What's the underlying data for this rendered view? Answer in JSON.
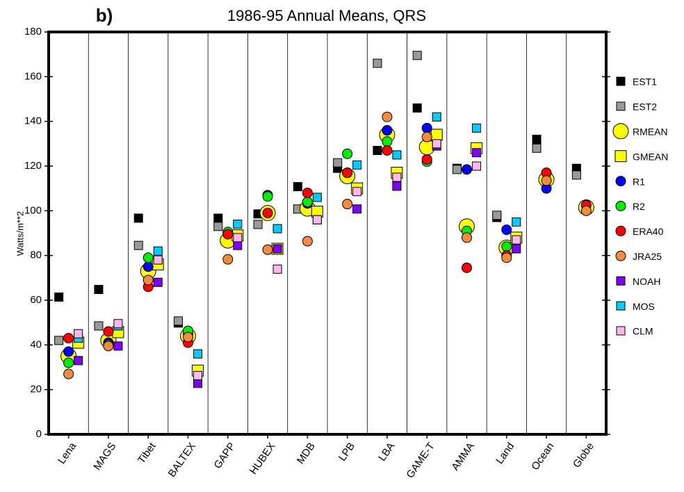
{
  "chart_data": {
    "type": "scatter",
    "panel": "b)",
    "title": "1986-95 Annual Means, QRS",
    "y_label": "Watts/m**2",
    "categories": [
      "Lena",
      "MAGS",
      "Tibet",
      "BALTEX",
      "GAPP",
      "HUBEX",
      "MDB",
      "LPB",
      "LBA",
      "GAME-T",
      "AMMA",
      "Land",
      "Ocean",
      "Globe"
    ],
    "ylim": [
      0,
      180
    ],
    "yticks": [
      0,
      20,
      40,
      60,
      80,
      100,
      120,
      140,
      160,
      180
    ],
    "series": [
      {
        "name": "EST1",
        "color": "#000000",
        "marker": "square",
        "values": [
          61.4,
          64.8,
          96.7,
          49.8,
          96.7,
          98.6,
          110.8,
          119,
          127,
          146,
          119,
          97,
          132,
          119
        ]
      },
      {
        "name": "EST2",
        "color": "#999999",
        "marker": "square",
        "values": [
          42,
          48.5,
          84.5,
          50.7,
          93,
          93.9,
          100.8,
          121.5,
          166,
          169.5,
          118.5,
          98,
          128,
          116
        ]
      },
      {
        "name": "RMEAN",
        "color": "#ffff00",
        "marker": "circle",
        "values": [
          35,
          42,
          73,
          44,
          86.7,
          99,
          101,
          115.5,
          134,
          128.5,
          93,
          83.5,
          114,
          101.5
        ]
      },
      {
        "name": "GMEAN",
        "color": "#ffff00",
        "marker": "square",
        "values": [
          41,
          45.7,
          76,
          28.5,
          89,
          83,
          99.6,
          110,
          117,
          134,
          128,
          88,
          null,
          null
        ]
      },
      {
        "name": "R1",
        "color": "#0000ff",
        "marker": "circle",
        "values": [
          37,
          41,
          75,
          45,
          90,
          107,
          103.3,
          117,
          136,
          137,
          118.5,
          91.5,
          110,
          null
        ]
      },
      {
        "name": "R2",
        "color": "#00ee00",
        "marker": "circle",
        "values": [
          32,
          40,
          79,
          46.3,
          90.5,
          106.4,
          104,
          125.5,
          131,
          122,
          91,
          84,
          null,
          null
        ]
      },
      {
        "name": "ERA40",
        "color": "#ff0000",
        "marker": "circle",
        "values": [
          43,
          46,
          66,
          41,
          89.5,
          99,
          108,
          117,
          127,
          123,
          74.5,
          80,
          117,
          102.5
        ]
      },
      {
        "name": "JRA25",
        "color": "#f08c3c",
        "marker": "circle",
        "values": [
          27,
          39.5,
          69,
          43.5,
          78.3,
          82.6,
          86.4,
          103,
          142,
          133,
          88,
          79,
          113.5,
          100
        ]
      },
      {
        "name": "NOAH",
        "color": "#7f00ff",
        "marker": "square",
        "values": [
          33,
          39.5,
          68,
          22.8,
          84.5,
          83,
          96,
          100.8,
          111,
          129,
          126,
          83,
          null,
          null
        ]
      },
      {
        "name": "MOS",
        "color": "#00ccff",
        "marker": "square",
        "values": [
          43,
          48.5,
          82,
          36,
          94,
          92,
          106,
          120.5,
          125,
          142,
          137,
          95,
          null,
          null
        ]
      },
      {
        "name": "CLM",
        "color": "#ffb6f0",
        "marker": "square",
        "values": [
          45,
          49.5,
          78,
          26.3,
          88,
          73.9,
          96,
          108.6,
          115,
          130,
          120,
          87,
          null,
          null
        ]
      }
    ]
  }
}
